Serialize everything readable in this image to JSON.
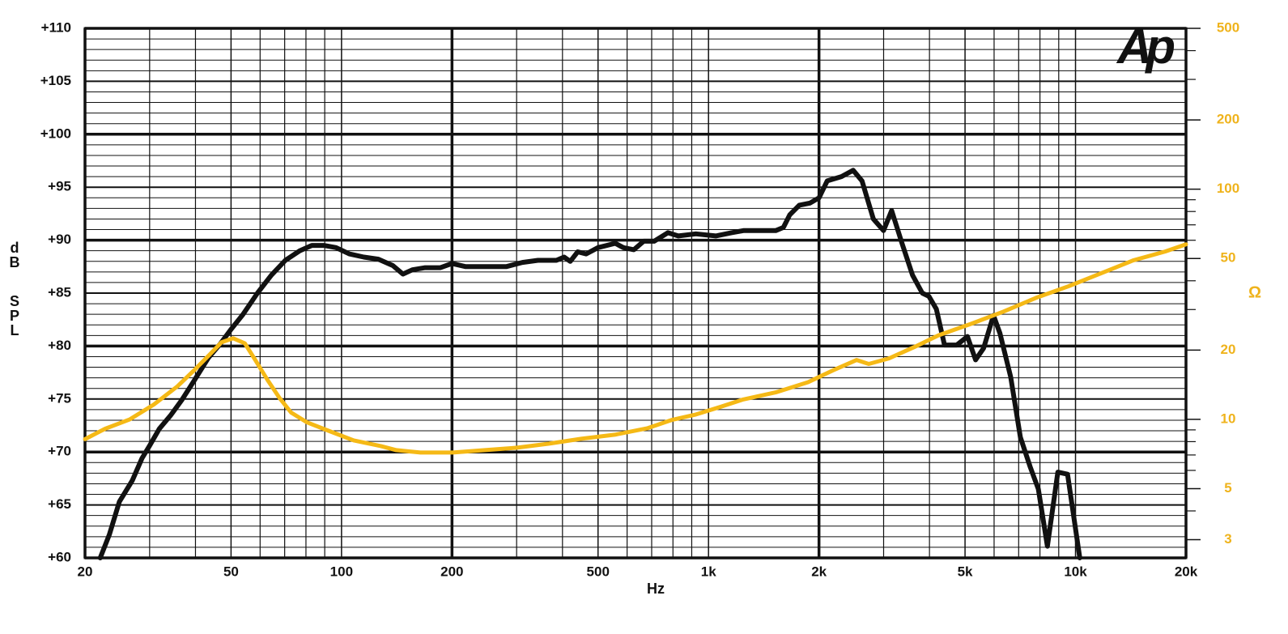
{
  "chart_data": {
    "type": "line",
    "logo": "Ap",
    "xlabel": "Hz",
    "ylabel_lines": [
      "dB",
      "SPL"
    ],
    "y2label": "Ω",
    "xscale": "log",
    "xlim": [
      20,
      20000
    ],
    "xticks": [
      20,
      50,
      100,
      200,
      500,
      {
        "value": 1000,
        "label": "1k"
      },
      {
        "value": 2000,
        "label": "2k"
      },
      {
        "value": 5000,
        "label": "5k"
      },
      {
        "value": 10000,
        "label": "10k"
      },
      {
        "value": 20000,
        "label": "20k"
      }
    ],
    "xminor": [
      30,
      40,
      60,
      70,
      80,
      90,
      300,
      400,
      600,
      700,
      800,
      900,
      3000,
      4000,
      6000,
      7000,
      8000,
      9000
    ],
    "ylim": [
      60,
      110
    ],
    "yticks": [
      {
        "value": 60,
        "label": "+60"
      },
      {
        "value": 65,
        "label": "+65"
      },
      {
        "value": 70,
        "label": "+70"
      },
      {
        "value": 75,
        "label": "+75"
      },
      {
        "value": 80,
        "label": "+80"
      },
      {
        "value": 85,
        "label": "+85"
      },
      {
        "value": 90,
        "label": "+90"
      },
      {
        "value": 95,
        "label": "+95"
      },
      {
        "value": 100,
        "label": "+100"
      },
      {
        "value": 105,
        "label": "+105"
      },
      {
        "value": 110,
        "label": "+110"
      }
    ],
    "yminor": [
      61,
      62,
      63,
      64,
      66,
      67,
      68,
      69,
      71,
      72,
      73,
      74,
      76,
      77,
      78,
      79,
      81,
      82,
      83,
      84,
      86,
      87,
      88,
      89,
      91,
      92,
      93,
      94,
      96,
      97,
      98,
      99,
      101,
      102,
      103,
      104,
      106,
      107,
      108,
      109
    ],
    "y2scale": "log",
    "y2lim": [
      2.5,
      500
    ],
    "y2ticks": [
      3,
      5,
      10,
      20,
      50,
      100,
      200,
      500
    ],
    "y2minor": [
      4,
      6,
      7,
      8,
      9,
      30,
      40,
      60,
      70,
      80,
      90,
      300,
      400
    ],
    "color_y2": "#efb31c",
    "grid": true,
    "series": [
      {
        "color": "#111111",
        "axis": "y",
        "x": [
          22,
          23.3,
          24.8,
          26.9,
          28.6,
          30,
          31.9,
          34.3,
          36.7,
          39.6,
          43.4,
          46.7,
          49.8,
          53.9,
          59,
          64.4,
          70.3,
          76.9,
          83,
          89.5,
          96.6,
          105,
          115,
          126,
          138,
          147,
          156,
          169,
          186,
          200,
          218,
          246,
          281,
          311,
          343,
          385,
          404,
          420,
          440,
          464,
          500,
          557,
          586,
          626,
          666,
          711,
          775,
          827,
          924,
          1047,
          1155,
          1245,
          1377,
          1524,
          1600,
          1665,
          1768,
          1890,
          2000,
          2106,
          2302,
          2479,
          2620,
          2812,
          2998,
          3155,
          3367,
          3597,
          3825,
          3985,
          4175,
          4395,
          4746,
          5074,
          5341,
          5619,
          5978,
          6224,
          6655,
          7075,
          7522,
          7918,
          8383,
          8949,
          9515,
          10270
        ],
        "values": [
          60,
          62.2,
          65.3,
          67.3,
          69.4,
          70.6,
          72.2,
          73.5,
          74.9,
          76.7,
          78.9,
          80.2,
          81.5,
          83,
          85,
          86.7,
          88.1,
          89,
          89.5,
          89.5,
          89.3,
          88.7,
          88.4,
          88.2,
          87.6,
          86.8,
          87.2,
          87.4,
          87.4,
          87.8,
          87.5,
          87.5,
          87.5,
          87.9,
          88.1,
          88.1,
          88.4,
          88,
          88.9,
          88.7,
          89.3,
          89.7,
          89.3,
          89.1,
          89.9,
          89.9,
          90.7,
          90.4,
          90.6,
          90.4,
          90.7,
          90.9,
          90.9,
          90.9,
          91.2,
          92.4,
          93.3,
          93.5,
          94,
          95.6,
          96,
          96.6,
          95.6,
          92,
          90.9,
          92.8,
          89.7,
          86.7,
          85,
          84.7,
          83.5,
          80.1,
          80.1,
          80.9,
          78.7,
          79.8,
          82.9,
          81.2,
          77.1,
          71.4,
          68.6,
          66.5,
          61.1,
          68.1,
          67.9,
          60
        ]
      },
      {
        "color": "#f5b916",
        "axis": "y2",
        "x": [
          20,
          22.7,
          26.5,
          30.8,
          35.7,
          39.6,
          43.7,
          47.1,
          50.7,
          54.5,
          58.2,
          62.9,
          67.7,
          72.9,
          80.5,
          93.4,
          108,
          128,
          141,
          164,
          201,
          246,
          301,
          368,
          450,
          555,
          683,
          793,
          924,
          1072,
          1245,
          1524,
          1868,
          2178,
          2533,
          2733,
          3103,
          3634,
          4240,
          5197,
          6366,
          7800,
          9552,
          11700,
          14330,
          17550,
          20000
        ],
        "values": [
          8.2,
          9.1,
          10,
          11.6,
          13.9,
          16.3,
          19.1,
          21.6,
          22.5,
          21.4,
          18.1,
          14.8,
          12.4,
          10.7,
          9.7,
          8.85,
          8.1,
          7.65,
          7.35,
          7.17,
          7.17,
          7.35,
          7.53,
          7.84,
          8.23,
          8.57,
          9.15,
          9.93,
          10.5,
          11.3,
          12.2,
          13.1,
          14.5,
          16.3,
          18.1,
          17.4,
          18.4,
          20.6,
          23.2,
          26,
          29.4,
          33.7,
          37.8,
          43,
          49,
          53.6,
          57.6
        ]
      }
    ]
  }
}
